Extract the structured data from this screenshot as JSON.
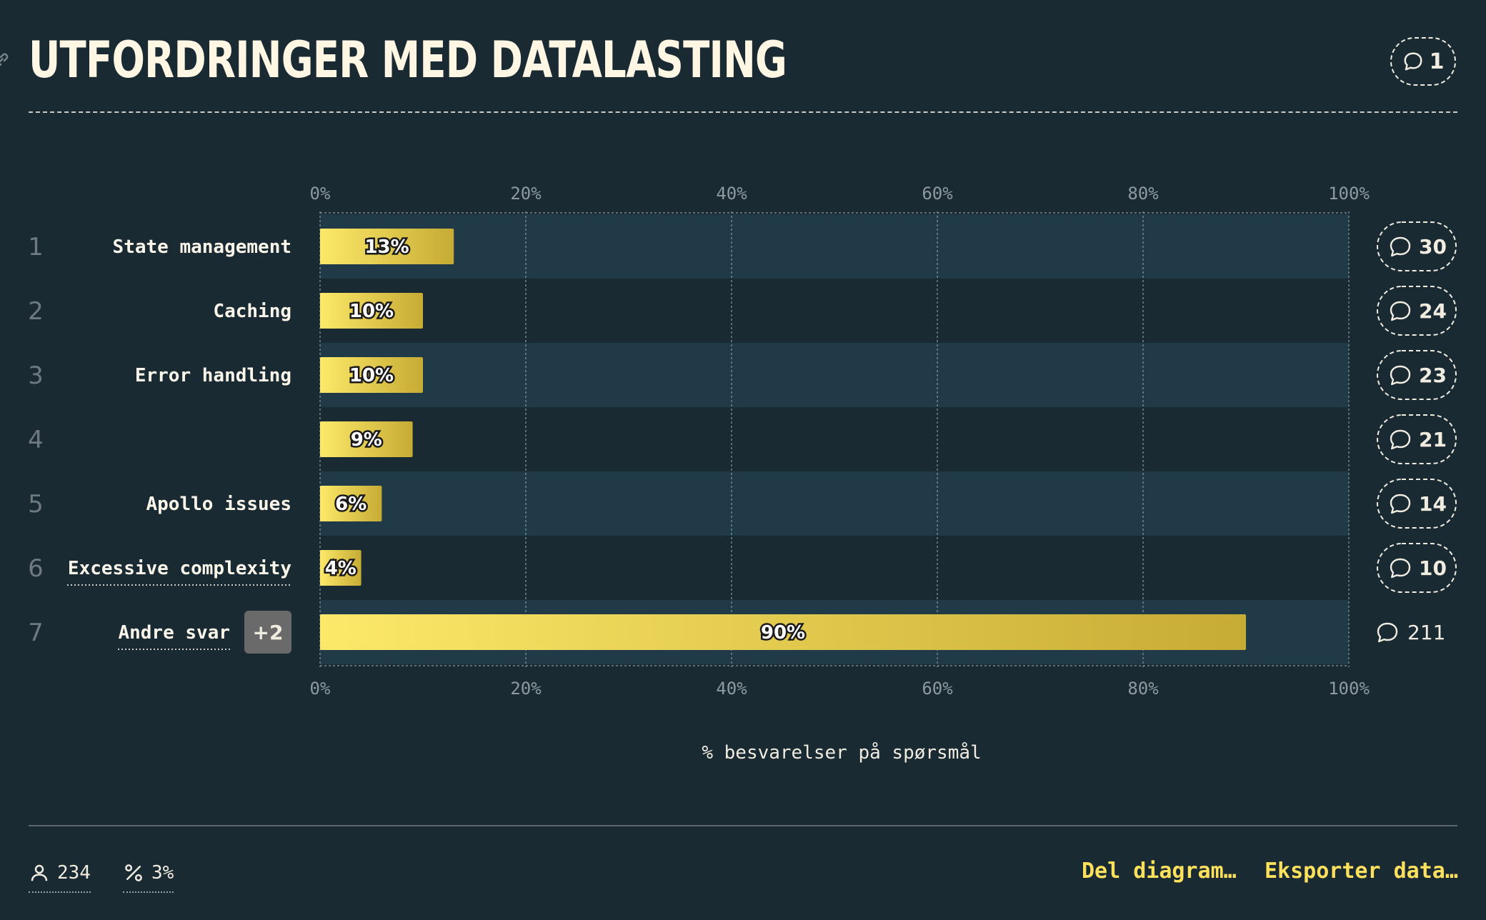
{
  "header": {
    "title": "UTFORDRINGER MED DATALASTING",
    "comment_count": "1"
  },
  "chart_data": {
    "type": "bar",
    "orientation": "horizontal",
    "ranks": [
      "1",
      "2",
      "3",
      "4",
      "5",
      "6",
      "7"
    ],
    "categories": [
      "State management",
      "Caching",
      "Error handling",
      "",
      "Apollo issues",
      "Excessive complexity",
      "Andre svar"
    ],
    "values": [
      13,
      10,
      10,
      9,
      6,
      4,
      90
    ],
    "value_labels": [
      "13%",
      "10%",
      "10%",
      "9%",
      "6%",
      "4%",
      "90%"
    ],
    "comment_counts": [
      "30",
      "24",
      "23",
      "21",
      "14",
      "10",
      "211"
    ],
    "other_answers_badge": "+2",
    "xlim": [
      0,
      100
    ],
    "x_ticks": [
      "0%",
      "20%",
      "40%",
      "60%",
      "80%",
      "100%"
    ],
    "xlabel": "% besvarelser på spørsmål",
    "grid": true,
    "colors": {
      "background": "#192a33",
      "band": "#213a48",
      "bar_start": "#fde969",
      "bar_end": "#c6ab34",
      "accent": "#fde05c"
    }
  },
  "footer": {
    "respondents": "234",
    "percent": "3%",
    "share_label": "Del diagram…",
    "export_label": "Eksporter data…"
  }
}
